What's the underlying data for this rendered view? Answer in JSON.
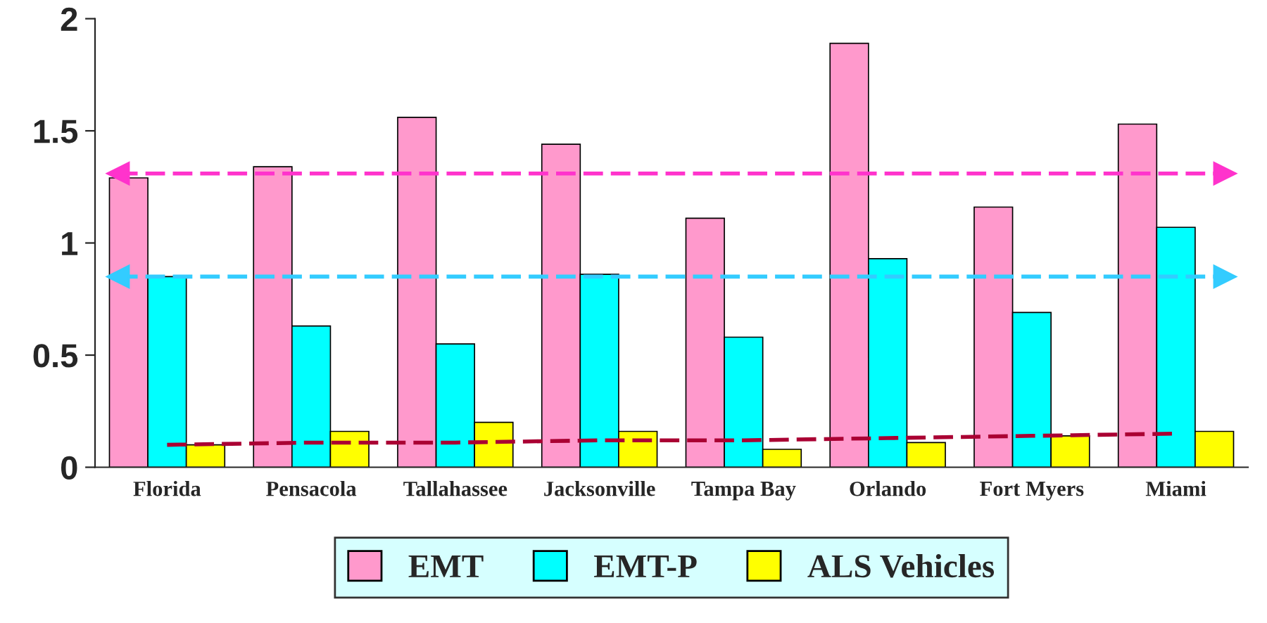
{
  "chart_data": {
    "type": "bar",
    "categories": [
      "Florida",
      "Pensacola",
      "Tallahassee",
      "Jacksonville",
      "Tampa Bay",
      "Orlando",
      "Fort Myers",
      "Miami"
    ],
    "series": [
      {
        "name": "EMT",
        "color": "#ff99cc",
        "values": [
          1.29,
          1.34,
          1.56,
          1.44,
          1.11,
          1.89,
          1.16,
          1.53
        ]
      },
      {
        "name": "EMT-P",
        "color": "#00ffff",
        "values": [
          0.85,
          0.63,
          0.55,
          0.86,
          0.58,
          0.93,
          0.69,
          1.07
        ]
      },
      {
        "name": "ALS Vehicles",
        "color": "#ffff00",
        "values": [
          0.1,
          0.16,
          0.2,
          0.16,
          0.08,
          0.11,
          0.14,
          0.16
        ]
      },
      {
        "type": "line",
        "color": "#aa0033",
        "line_style": "dashed",
        "values": [
          0.1,
          0.11,
          0.11,
          0.12,
          0.12,
          0.13,
          0.14,
          0.15
        ]
      }
    ],
    "ref_lines": [
      {
        "axis": "y",
        "value": 1.31,
        "color": "#ff33cc",
        "line_style": "dashed"
      },
      {
        "axis": "y",
        "value": 0.85,
        "color": "#33ccff",
        "line_style": "dashed"
      }
    ],
    "ylim": [
      0,
      2
    ],
    "yticks": [
      0,
      0.5,
      1,
      1.5,
      2
    ],
    "grid": false,
    "legend": "bottom"
  }
}
